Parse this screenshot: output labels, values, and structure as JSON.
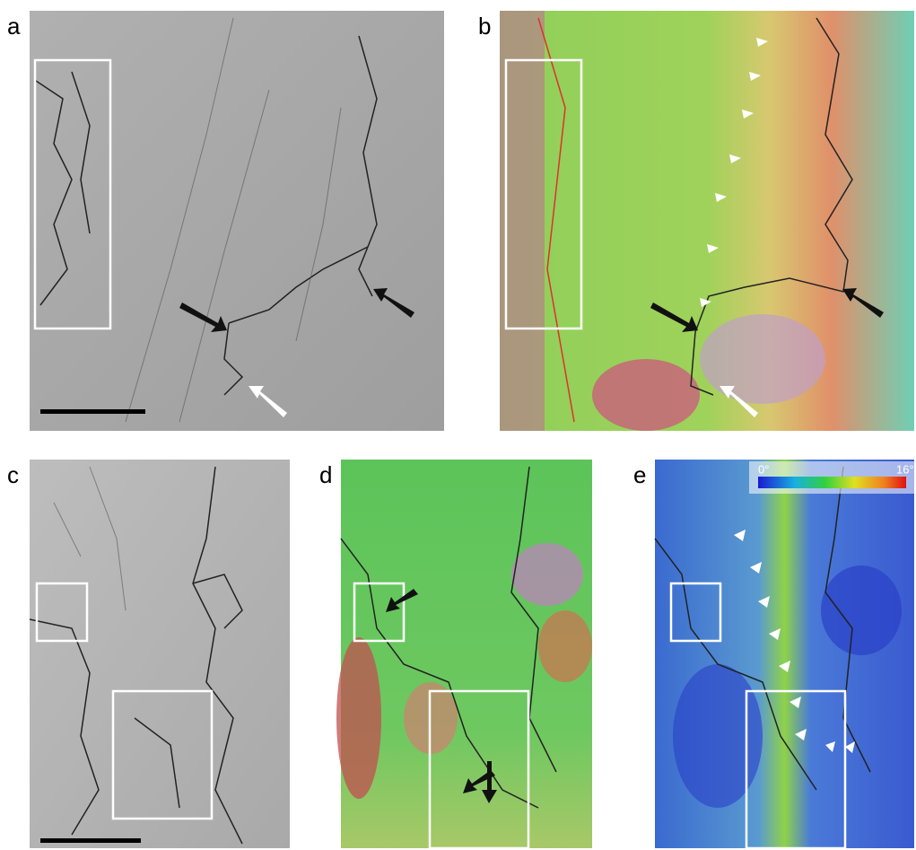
{
  "panels": [
    {
      "label": "a"
    },
    {
      "label": "b"
    },
    {
      "label": "c"
    },
    {
      "label": "d"
    },
    {
      "label": "e"
    }
  ],
  "colorbar": {
    "min_label": "0°",
    "max_label": "16°"
  }
}
